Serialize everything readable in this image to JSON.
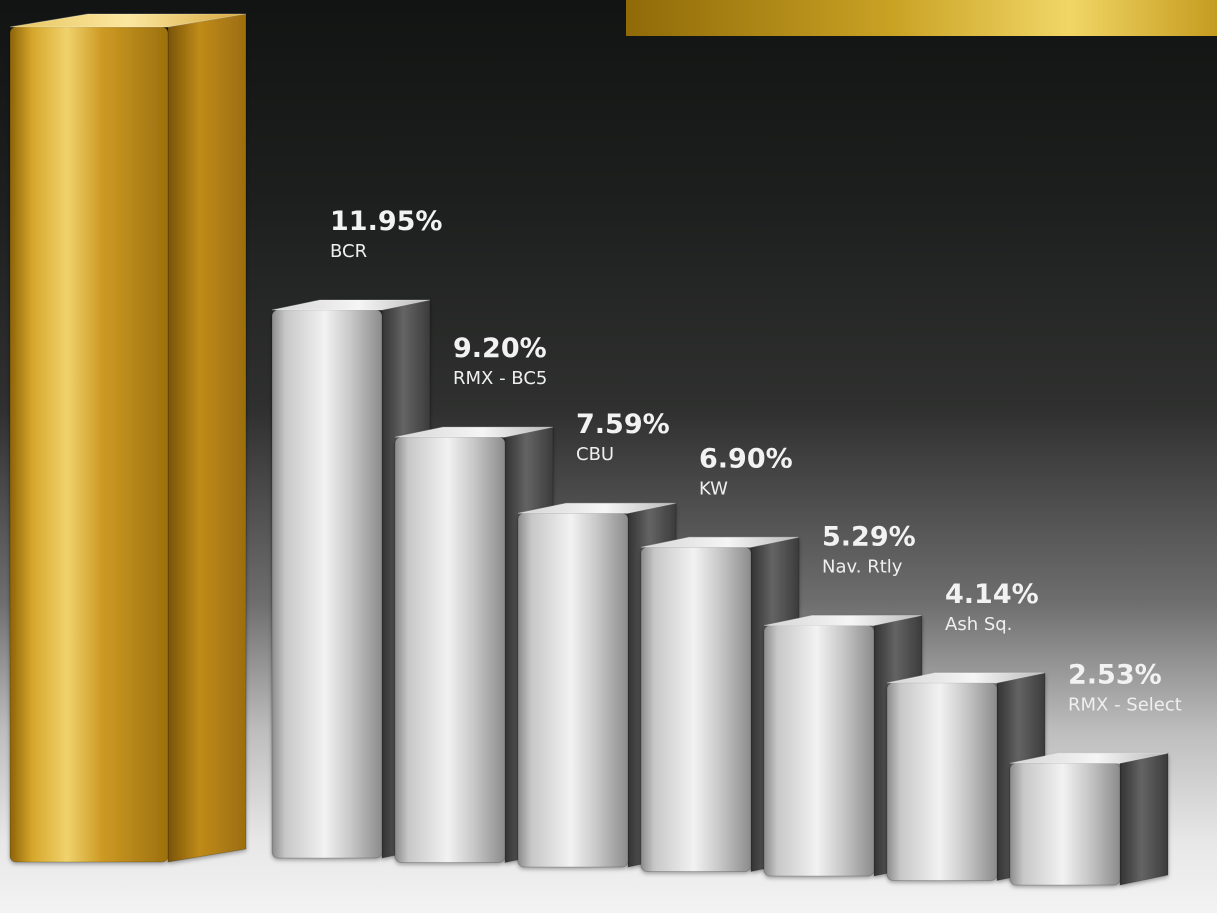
{
  "colors": {
    "background_top": "#161817",
    "background_bottom": "#f1f1f1",
    "gold": "#d7ac2c",
    "silver": "#d9d9d9",
    "label": "#f2f2f2"
  },
  "chart_data": {
    "type": "bar",
    "categories": [
      "BCR",
      "RMX - BC5",
      "CBU",
      "KW",
      "Nav. Rtly",
      "Ash Sq.",
      "RMX - Select"
    ],
    "values": [
      11.95,
      9.2,
      7.59,
      6.9,
      5.29,
      4.14,
      2.53
    ],
    "value_labels": [
      "11.95%",
      "9.20%",
      "7.59%",
      "6.90%",
      "5.29%",
      "4.14%",
      "2.53%"
    ],
    "highlight_bar_label": "",
    "title": "",
    "xlabel": "",
    "ylabel": "",
    "grid": false,
    "legend": "none",
    "render_style": "3d-columns"
  }
}
